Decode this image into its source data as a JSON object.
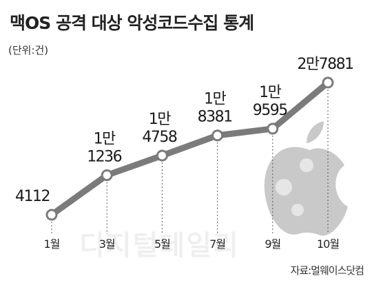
{
  "title": "맥OS 공격 대상 악성코드수집 통계",
  "subtitle": "(단위:건)",
  "source": "자료:멀웨이스닷컴",
  "watermark": "디지털데일리",
  "chart_data": {
    "type": "line",
    "categories": [
      "1월",
      "3월",
      "5월",
      "7월",
      "9월",
      "10월"
    ],
    "values": [
      4112,
      11236,
      14758,
      18381,
      19595,
      27881
    ],
    "value_labels": [
      "4112",
      "1만 1236",
      "1만 4758",
      "1만 8381",
      "1만 9595",
      "2만7881"
    ],
    "color": "#7b7b7b"
  }
}
